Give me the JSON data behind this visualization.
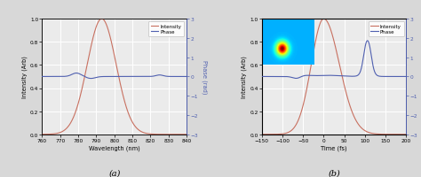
{
  "panel_a": {
    "xlabel": "Wavelength (nm)",
    "ylabel": "Intensity (Arb)",
    "ylabel_right": "Phase (rad)",
    "label": "(a)",
    "xlim": [
      760,
      840
    ],
    "ylim_left": [
      0,
      1.0
    ],
    "ylim_right": [
      -3,
      3
    ],
    "yticks_left": [
      0.0,
      0.2,
      0.4,
      0.6,
      0.8,
      1.0
    ],
    "yticks_right": [
      -3,
      -2,
      -1,
      0,
      1,
      2,
      3
    ],
    "xticks": [
      760,
      770,
      780,
      790,
      800,
      810,
      820,
      830,
      840
    ],
    "intensity_color": "#c87060",
    "phase_color": "#5060b0",
    "legend_labels": [
      "Intensity",
      "Phase"
    ]
  },
  "panel_b": {
    "xlabel": "Time (fs)",
    "ylabel": "Intensity (Arb)",
    "ylabel_right": "Phase (rad)",
    "label": "(b)",
    "xlim": [
      -150,
      200
    ],
    "ylim_left": [
      0,
      1.0
    ],
    "ylim_right": [
      -3,
      3
    ],
    "yticks_left": [
      0.0,
      0.2,
      0.4,
      0.6,
      0.8,
      1.0
    ],
    "yticks_right": [
      -3,
      -2,
      -1,
      0,
      1,
      2,
      3
    ],
    "xticks": [
      -150,
      -100,
      -50,
      0,
      50,
      100,
      150,
      200
    ],
    "intensity_color": "#c87060",
    "phase_color": "#5060b0",
    "legend_labels": [
      "Intensity",
      "Phase"
    ]
  },
  "background_color": "#ebebeb",
  "plot_bg_color": "#ebebeb",
  "grid_color": "#ffffff",
  "fig_bg_color": "#d8d8d8",
  "figsize": [
    4.74,
    2.01
  ],
  "dpi": 100
}
